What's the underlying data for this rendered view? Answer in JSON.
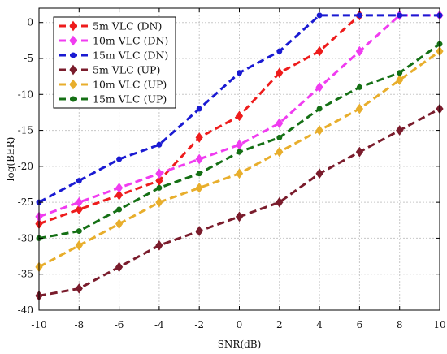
{
  "chart_data": {
    "type": "line",
    "xlabel": "SNR(dB)",
    "ylabel": "log(BER)",
    "xlim": [
      -10,
      10
    ],
    "ylim": [
      -40,
      2
    ],
    "xticks": [
      -10,
      -8,
      -6,
      -4,
      -2,
      0,
      2,
      4,
      6,
      8,
      10
    ],
    "yticks": [
      0,
      -5,
      -10,
      -15,
      -20,
      -25,
      -30,
      -35,
      -40
    ],
    "grid": true,
    "legend_position": "top-left",
    "x": [
      -10,
      -8,
      -6,
      -4,
      -2,
      0,
      2,
      4,
      6,
      8,
      10
    ],
    "series": [
      {
        "name": "5m VLC (DN)",
        "color": "#ee1c1c",
        "marker": "diamond",
        "values": [
          -28,
          -26,
          -24,
          -22,
          -16,
          -13,
          -7,
          -4,
          1,
          null,
          null
        ]
      },
      {
        "name": "10m VLC (DN)",
        "color": "#f03cf0",
        "marker": "diamond",
        "values": [
          -27,
          -25,
          -23,
          -21,
          -19,
          -17,
          -14,
          -9,
          -4,
          1,
          1
        ]
      },
      {
        "name": "15m VLC (DN)",
        "color": "#1a1ad2",
        "marker": "dot",
        "values": [
          -25,
          -22,
          -19,
          -17,
          -12,
          -7,
          -4,
          1,
          1,
          1,
          1
        ]
      },
      {
        "name": "5m VLC (UP)",
        "color": "#7a1c2c",
        "marker": "diamond",
        "values": [
          -38,
          -37,
          -34,
          -31,
          -29,
          -27,
          -25,
          -21,
          -18,
          -15,
          -12
        ]
      },
      {
        "name": "10m VLC (UP)",
        "color": "#e8ae2c",
        "marker": "diamond",
        "values": [
          -34,
          -31,
          -28,
          -25,
          -23,
          -21,
          -18,
          -15,
          -12,
          -8,
          -4
        ]
      },
      {
        "name": "15m VLC (UP)",
        "color": "#157015",
        "marker": "dot",
        "values": [
          -30,
          -29,
          -26,
          -23,
          -21,
          -18,
          -16,
          -12,
          -9,
          -7,
          -3
        ]
      }
    ]
  }
}
